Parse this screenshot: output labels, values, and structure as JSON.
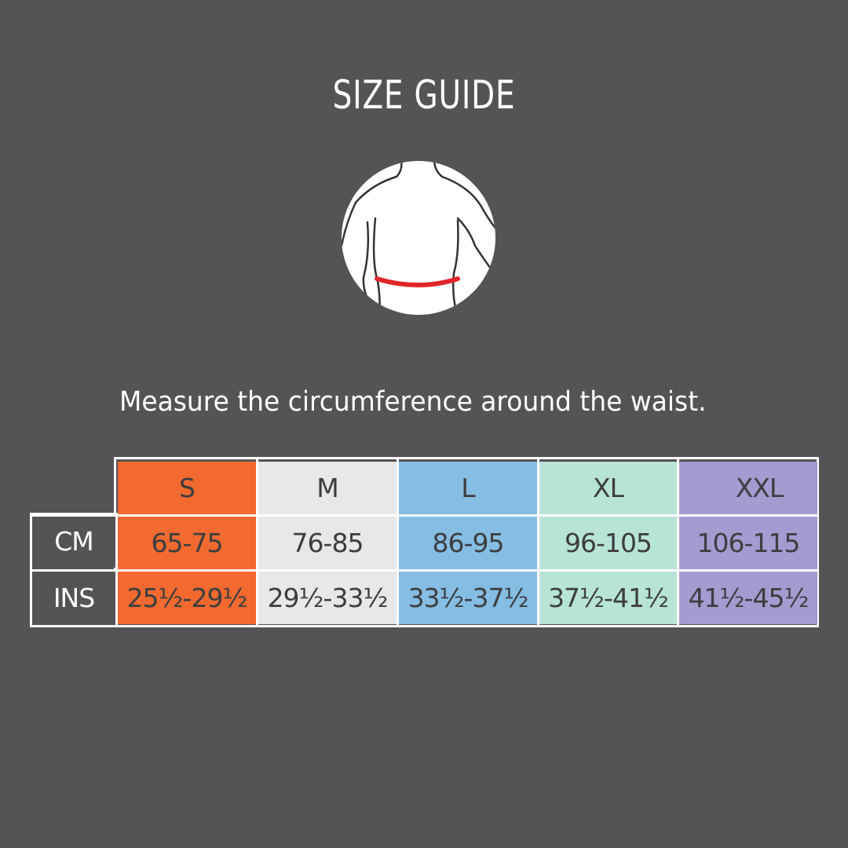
{
  "title": "SIZE GUIDE",
  "illustration": {
    "icon": "torso-waist-measurement-icon",
    "band_color": "#e0262b"
  },
  "instruction": "Measure the circumference around the waist.",
  "table": {
    "row_labels": [
      "CM",
      "INS"
    ],
    "columns": [
      {
        "size": "S",
        "cm": "65-75",
        "ins": "25½-29½",
        "color": "#f26a30"
      },
      {
        "size": "M",
        "cm": "76-85",
        "ins": "29½-33½",
        "color": "#e8e8e8"
      },
      {
        "size": "L",
        "cm": "86-95",
        "ins": "33½-37½",
        "color": "#85bde3"
      },
      {
        "size": "XL",
        "cm": "96-105",
        "ins": "37½-41½",
        "color": "#b8e4d8"
      },
      {
        "size": "XXL",
        "cm": "106-115",
        "ins": "41½-45½",
        "color": "#a59bd1"
      }
    ]
  }
}
